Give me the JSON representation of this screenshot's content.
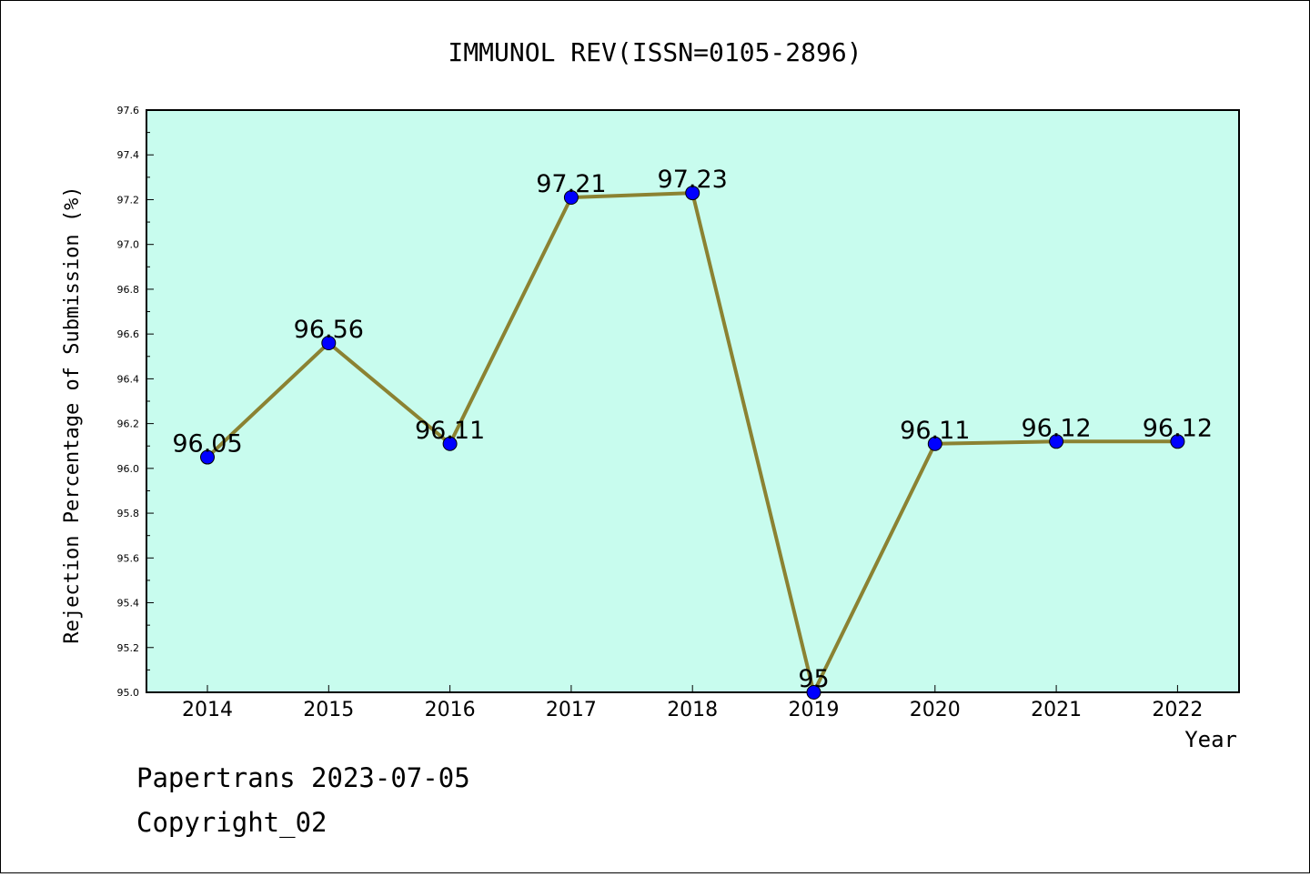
{
  "chart_data": {
    "type": "line",
    "title": "IMMUNOL REV(ISSN=0105-2896)",
    "xlabel": "Year",
    "ylabel": "Rejection Percentage of Submission (%)",
    "categories": [
      "2014",
      "2015",
      "2016",
      "2017",
      "2018",
      "2019",
      "2020",
      "2021",
      "2022"
    ],
    "series": [
      {
        "values": [
          96.05,
          96.56,
          96.11,
          97.21,
          97.23,
          95.0,
          96.11,
          96.12,
          96.12
        ],
        "labels": [
          "96.05",
          "96.56",
          "96.11",
          "97.21",
          "97.23",
          "95",
          "96.11",
          "96.12",
          "96.12"
        ]
      }
    ],
    "ylim": [
      95.0,
      97.6
    ],
    "yticks": [
      "95.0",
      "95.2",
      "95.4",
      "95.6",
      "95.8",
      "96.0",
      "96.2",
      "96.4",
      "96.6",
      "96.8",
      "97.0",
      "97.2",
      "97.4",
      "97.6"
    ],
    "colors": {
      "plot_background": "#c8fcee",
      "line": "#8b8232",
      "marker": "#0000ff"
    },
    "grid": false,
    "legend": "none"
  },
  "footer": {
    "line1": "Papertrans 2023-07-05",
    "line2": "Copyright_02"
  }
}
